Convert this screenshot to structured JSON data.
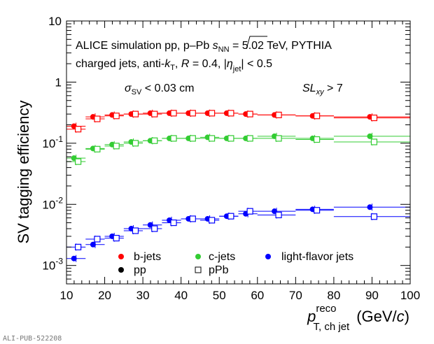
{
  "chart_data": {
    "type": "scatter",
    "ylabel": "SV tagging efficiency",
    "xlabel": {
      "main": "p",
      "sup": "reco",
      "sub": "T, ch jet",
      "unit_open": "(GeV/",
      "unit_c": "c",
      "unit_close": ")"
    },
    "xlim": [
      10,
      100
    ],
    "ylim": [
      0.0005,
      10
    ],
    "y_scale": "log",
    "x_ticks": [
      10,
      20,
      30,
      40,
      50,
      60,
      70,
      80,
      90,
      100
    ],
    "y_ticks": [
      {
        "base": "10",
        "exp": "-3",
        "value": 0.001
      },
      {
        "base": "10",
        "exp": "-2",
        "value": 0.01
      },
      {
        "base": "10",
        "exp": "-1",
        "value": 0.1
      },
      {
        "base": "1",
        "exp": "",
        "value": 1
      },
      {
        "base": "10",
        "exp": "",
        "value": 10
      }
    ],
    "grid": false,
    "annotations": {
      "line1_a": "ALICE simulation  pp, p–Pb ",
      "line1_s": "s",
      "line1_nn": "NN",
      "line1_b": " = 5.02 TeV, PYTHIA",
      "line2_a": "charged jets, anti-",
      "line2_k": "k",
      "line2_t": "T",
      "line2_b": ", ",
      "line2_r": "R",
      "line2_c": " = 0.4, |",
      "line2_eta": "η",
      "line2_jet": "jet",
      "line2_d": "| < 0.5",
      "cut1_sigma": "σ",
      "cut1_sv": "SV",
      "cut1_rest": " < 0.03 cm",
      "cut2_sl": "SL",
      "cut2_xy": "xy",
      "cut2_rest": " > 7"
    },
    "legend": {
      "placement": "bottom-left",
      "flavors": [
        {
          "label": "b-jets",
          "color": "#ff0000"
        },
        {
          "label": "c-jets",
          "color": "#33cc33"
        },
        {
          "label": "light-flavor jets",
          "color": "#0000ff"
        }
      ],
      "systems": [
        {
          "label": "pp",
          "marker": "filled circle"
        },
        {
          "label": "pPb",
          "marker": "open square"
        }
      ]
    },
    "bins": [
      [
        10,
        15
      ],
      [
        15,
        20
      ],
      [
        20,
        25
      ],
      [
        25,
        30
      ],
      [
        30,
        35
      ],
      [
        35,
        40
      ],
      [
        40,
        45
      ],
      [
        45,
        50
      ],
      [
        50,
        55
      ],
      [
        55,
        60
      ],
      [
        60,
        70
      ],
      [
        70,
        80
      ],
      [
        80,
        100
      ]
    ],
    "series": [
      {
        "name": "b-jets",
        "system": "pp",
        "color": "#ff0000",
        "marker": "circle",
        "x": [
          12.5,
          17.5,
          22.5,
          27.5,
          32.5,
          37.5,
          42.5,
          47.5,
          52.5,
          57.5,
          65,
          75,
          90
        ],
        "y": [
          0.19,
          0.27,
          0.29,
          0.3,
          0.31,
          0.31,
          0.31,
          0.31,
          0.31,
          0.3,
          0.29,
          0.28,
          0.27
        ]
      },
      {
        "name": "b-jets",
        "system": "pPb",
        "color": "#ff0000",
        "marker": "square",
        "x": [
          12.5,
          17.5,
          22.5,
          27.5,
          32.5,
          37.5,
          42.5,
          47.5,
          52.5,
          57.5,
          65,
          75,
          90
        ],
        "y": [
          0.17,
          0.25,
          0.28,
          0.3,
          0.3,
          0.31,
          0.31,
          0.31,
          0.31,
          0.3,
          0.29,
          0.28,
          0.26
        ]
      },
      {
        "name": "c-jets",
        "system": "pp",
        "color": "#33cc33",
        "marker": "circle",
        "x": [
          12.5,
          17.5,
          22.5,
          27.5,
          32.5,
          37.5,
          42.5,
          47.5,
          52.5,
          57.5,
          65,
          75,
          90
        ],
        "y": [
          0.057,
          0.082,
          0.095,
          0.105,
          0.11,
          0.12,
          0.12,
          0.125,
          0.12,
          0.12,
          0.13,
          0.12,
          0.13
        ]
      },
      {
        "name": "c-jets",
        "system": "pPb",
        "color": "#33cc33",
        "marker": "square",
        "x": [
          12.5,
          17.5,
          22.5,
          27.5,
          32.5,
          37.5,
          42.5,
          47.5,
          52.5,
          57.5,
          65,
          75,
          90
        ],
        "y": [
          0.05,
          0.08,
          0.09,
          0.1,
          0.11,
          0.12,
          0.12,
          0.12,
          0.12,
          0.12,
          0.12,
          0.115,
          0.105
        ]
      },
      {
        "name": "light-flavor jets",
        "system": "pp",
        "color": "#0000ff",
        "marker": "circle",
        "x": [
          12.5,
          17.5,
          22.5,
          27.5,
          32.5,
          37.5,
          42.5,
          47.5,
          52.5,
          57.5,
          65,
          75,
          90
        ],
        "y": [
          0.0013,
          0.0022,
          0.003,
          0.004,
          0.0046,
          0.0055,
          0.0058,
          0.0058,
          0.0064,
          0.007,
          0.0077,
          0.0083,
          0.009
        ]
      },
      {
        "name": "light-flavor jets",
        "system": "pPb",
        "color": "#0000ff",
        "marker": "square",
        "x": [
          12.5,
          17.5,
          22.5,
          27.5,
          32.5,
          37.5,
          42.5,
          47.5,
          52.5,
          57.5,
          65,
          75,
          90
        ],
        "y": [
          0.002,
          0.0027,
          0.0028,
          0.0037,
          0.004,
          0.005,
          0.0058,
          0.0055,
          0.0064,
          0.0077,
          0.0067,
          0.008,
          0.0063
        ]
      }
    ]
  },
  "watermark": "ALI-PUB-522208"
}
